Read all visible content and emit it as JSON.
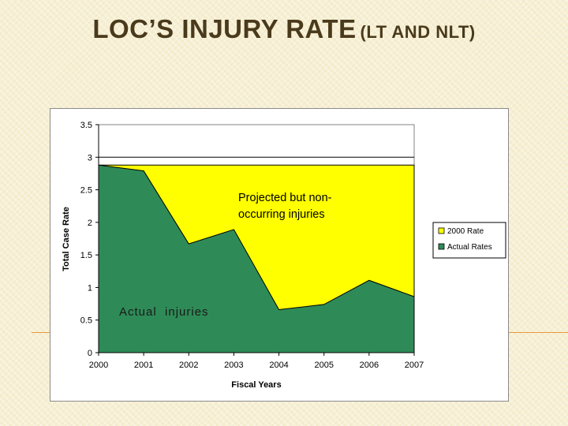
{
  "slide": {
    "title_main": "LOC’s Injury Rate",
    "title_sub": "(LT and NLT)"
  },
  "colors": {
    "projected": "#ffff00",
    "actual": "#2e8b57",
    "accent_line": "#e89a3c"
  },
  "chart_data": {
    "type": "area",
    "title": "",
    "xlabel": "Fiscal Years",
    "ylabel": "Total Case Rate",
    "x": [
      "2000",
      "2001",
      "2002",
      "2003",
      "2004",
      "2005",
      "2006",
      "2007"
    ],
    "ylim": [
      0,
      3.5
    ],
    "yticks": [
      "0",
      "0.5",
      "1",
      "1.5",
      "2",
      "2.5",
      "3",
      "3.5"
    ],
    "reference_line": 3,
    "series": [
      {
        "name": "2000 Rate",
        "values": [
          2.88,
          2.88,
          2.88,
          2.88,
          2.88,
          2.88,
          2.88,
          2.88
        ]
      },
      {
        "name": "Actual Rates",
        "values": [
          2.88,
          2.79,
          1.67,
          1.89,
          0.66,
          0.74,
          1.11,
          0.86
        ]
      }
    ],
    "legend_position": "right",
    "annotations": [
      {
        "text": "Projected but non-occurring injuries",
        "line1": "Projected but non-",
        "line2": "occurring injuries"
      },
      {
        "text": "Actual  injuries"
      }
    ]
  }
}
